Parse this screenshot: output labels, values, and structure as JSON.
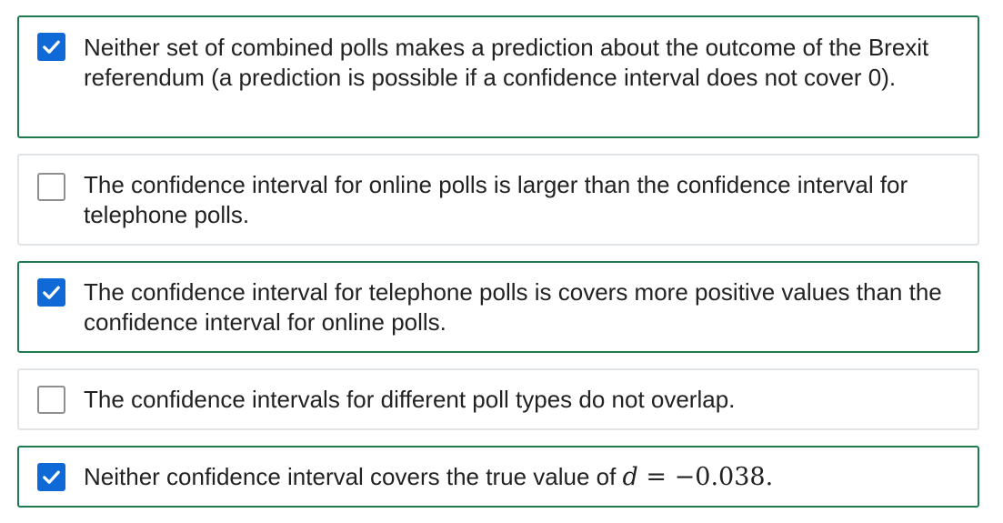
{
  "options": [
    {
      "checked": true,
      "text": "Neither set of combined polls makes a prediction about the outcome of the Brexit referendum (a prediction is possible if a confidence interval does not cover 0)."
    },
    {
      "checked": false,
      "text": "The confidence interval for online polls is larger than the confidence interval for telephone polls."
    },
    {
      "checked": true,
      "text": "The confidence interval for telephone polls is covers more positive values than the confidence interval for online polls."
    },
    {
      "checked": false,
      "text": "The confidence intervals for different poll types do not overlap."
    },
    {
      "checked": true,
      "text": "Neither confidence interval covers the true value of ",
      "math": {
        "variable": "d",
        "operator": " = ",
        "value": "−0.038",
        "suffix": "."
      }
    }
  ],
  "icons": {
    "checkmark": "checkmark-icon"
  },
  "colors": {
    "selected_border": "#1f7a50",
    "unselected_border": "#e2e5e8",
    "checkbox_checked": "#0f6ad8",
    "checkbox_unchecked_border": "#8f8f8f",
    "text": "#222222"
  }
}
